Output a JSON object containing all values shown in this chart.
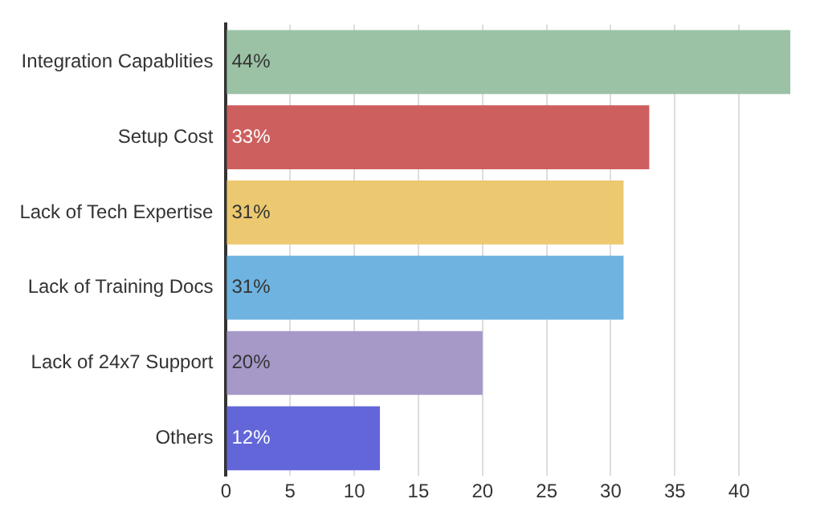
{
  "chart_data": {
    "type": "bar",
    "orientation": "horizontal",
    "categories": [
      "Integration Capablities",
      "Setup Cost",
      "Lack of Tech Expertise",
      "Lack of Training Docs",
      "Lack of 24x7 Support",
      "Others"
    ],
    "values": [
      44,
      33,
      31,
      31,
      20,
      12
    ],
    "colors": [
      "#9bc2a5",
      "#cd5f5e",
      "#ecc870",
      "#6fb4e0",
      "#a699c8",
      "#6266d8"
    ],
    "value_labels": [
      "44%",
      "33%",
      "31%",
      "31%",
      "20%",
      "12%"
    ],
    "xlim": [
      0,
      44
    ],
    "xticks": [
      0,
      5,
      10,
      15,
      20,
      25,
      30,
      35,
      40
    ],
    "grid": "x",
    "legend": false
  }
}
